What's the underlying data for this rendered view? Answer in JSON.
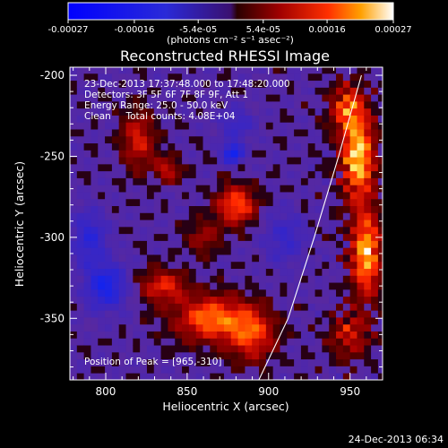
{
  "chart_data": {
    "type": "heatmap",
    "title": "Reconstructed RHESSI Image",
    "xlabel": "Heliocentric X (arcsec)",
    "ylabel": "Heliocentric Y (arcsec)",
    "xlim": [
      778,
      970
    ],
    "ylim": [
      -388,
      -195
    ],
    "x_ticks": [
      800,
      850,
      900,
      950
    ],
    "y_ticks": [
      -200,
      -250,
      -300,
      -350
    ],
    "colorbar": {
      "range": [
        -0.00027,
        0.00027
      ],
      "ticks": [
        "-0.00027",
        "-0.00016",
        "-5.4e-05",
        "5.4e-05",
        "0.00016",
        "0.00027"
      ],
      "tick_values": [
        -0.00027,
        -0.00016,
        -5.4e-05,
        5.4e-05,
        0.00016,
        0.00027
      ],
      "unit_label": "(photons cm⁻² s⁻¹ asec⁻²)"
    },
    "annotations": [
      "23-Dec-2013 17:37:48.000 to 17:48:20.000",
      "Detectors: 3F 5F 6F 7F 8F 9F, Att 1",
      "Energy Range: 25.0 - 50.0 keV",
      "Clean     Total counts: 4.08E+04",
      "Position of Peak = [965,-310]"
    ],
    "limb_curve": [
      [
        894,
        -388
      ],
      [
        912,
        -350
      ],
      [
        928,
        -300
      ],
      [
        943,
        -250
      ],
      [
        957,
        -200
      ]
    ],
    "peak_position": [
      965,
      -310
    ],
    "bright_regions": [
      {
        "x": 865,
        "y": -350,
        "level": 0.75,
        "sx": 22,
        "sy": 14
      },
      {
        "x": 835,
        "y": -330,
        "level": 0.55,
        "sx": 14,
        "sy": 10
      },
      {
        "x": 890,
        "y": -360,
        "level": 0.6,
        "sx": 14,
        "sy": 16
      },
      {
        "x": 955,
        "y": -250,
        "level": 0.95,
        "sx": 10,
        "sy": 26
      },
      {
        "x": 960,
        "y": -310,
        "level": 0.9,
        "sx": 9,
        "sy": 26
      },
      {
        "x": 948,
        "y": -220,
        "level": 0.6,
        "sx": 10,
        "sy": 14
      },
      {
        "x": 950,
        "y": -360,
        "level": 0.45,
        "sx": 12,
        "sy": 14
      },
      {
        "x": 880,
        "y": -280,
        "level": 0.7,
        "sx": 12,
        "sy": 12
      },
      {
        "x": 820,
        "y": -240,
        "level": 0.5,
        "sx": 10,
        "sy": 18
      },
      {
        "x": 838,
        "y": -258,
        "level": 0.45,
        "sx": 8,
        "sy": 8
      },
      {
        "x": 860,
        "y": -300,
        "level": 0.35,
        "sx": 10,
        "sy": 10
      }
    ],
    "dark_regions": [
      {
        "x": 800,
        "y": -330,
        "level": -0.7,
        "sx": 12,
        "sy": 14
      },
      {
        "x": 878,
        "y": -248,
        "level": -0.8,
        "sx": 6,
        "sy": 6
      },
      {
        "x": 790,
        "y": -300,
        "level": -0.5,
        "sx": 10,
        "sy": 16
      },
      {
        "x": 880,
        "y": -230,
        "level": -0.35,
        "sx": 10,
        "sy": 10
      },
      {
        "x": 910,
        "y": -300,
        "level": -0.35,
        "sx": 12,
        "sy": 16
      }
    ]
  },
  "footer_timestamp": "24-Dec-2013 06:34"
}
